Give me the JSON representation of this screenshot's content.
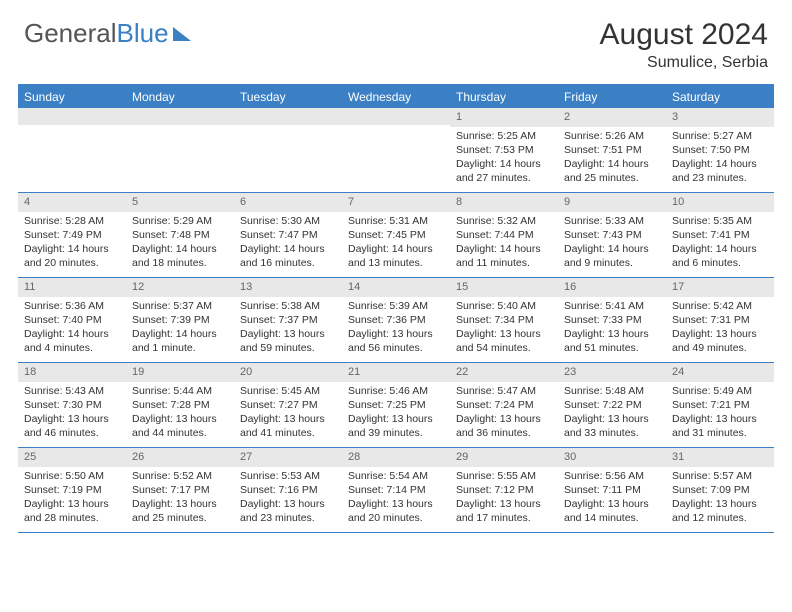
{
  "brand": {
    "part1": "General",
    "part2": "Blue"
  },
  "title": "August 2024",
  "location": "Sumulice, Serbia",
  "colors": {
    "accent": "#3b7fc4",
    "header_text": "#333333",
    "daynum_bg": "#e8e8e8"
  },
  "days_of_week": [
    "Sunday",
    "Monday",
    "Tuesday",
    "Wednesday",
    "Thursday",
    "Friday",
    "Saturday"
  ],
  "weeks": [
    [
      {
        "n": "",
        "sunrise": "",
        "sunset": "",
        "daylight": ""
      },
      {
        "n": "",
        "sunrise": "",
        "sunset": "",
        "daylight": ""
      },
      {
        "n": "",
        "sunrise": "",
        "sunset": "",
        "daylight": ""
      },
      {
        "n": "",
        "sunrise": "",
        "sunset": "",
        "daylight": ""
      },
      {
        "n": "1",
        "sunrise": "Sunrise: 5:25 AM",
        "sunset": "Sunset: 7:53 PM",
        "daylight": "Daylight: 14 hours and 27 minutes."
      },
      {
        "n": "2",
        "sunrise": "Sunrise: 5:26 AM",
        "sunset": "Sunset: 7:51 PM",
        "daylight": "Daylight: 14 hours and 25 minutes."
      },
      {
        "n": "3",
        "sunrise": "Sunrise: 5:27 AM",
        "sunset": "Sunset: 7:50 PM",
        "daylight": "Daylight: 14 hours and 23 minutes."
      }
    ],
    [
      {
        "n": "4",
        "sunrise": "Sunrise: 5:28 AM",
        "sunset": "Sunset: 7:49 PM",
        "daylight": "Daylight: 14 hours and 20 minutes."
      },
      {
        "n": "5",
        "sunrise": "Sunrise: 5:29 AM",
        "sunset": "Sunset: 7:48 PM",
        "daylight": "Daylight: 14 hours and 18 minutes."
      },
      {
        "n": "6",
        "sunrise": "Sunrise: 5:30 AM",
        "sunset": "Sunset: 7:47 PM",
        "daylight": "Daylight: 14 hours and 16 minutes."
      },
      {
        "n": "7",
        "sunrise": "Sunrise: 5:31 AM",
        "sunset": "Sunset: 7:45 PM",
        "daylight": "Daylight: 14 hours and 13 minutes."
      },
      {
        "n": "8",
        "sunrise": "Sunrise: 5:32 AM",
        "sunset": "Sunset: 7:44 PM",
        "daylight": "Daylight: 14 hours and 11 minutes."
      },
      {
        "n": "9",
        "sunrise": "Sunrise: 5:33 AM",
        "sunset": "Sunset: 7:43 PM",
        "daylight": "Daylight: 14 hours and 9 minutes."
      },
      {
        "n": "10",
        "sunrise": "Sunrise: 5:35 AM",
        "sunset": "Sunset: 7:41 PM",
        "daylight": "Daylight: 14 hours and 6 minutes."
      }
    ],
    [
      {
        "n": "11",
        "sunrise": "Sunrise: 5:36 AM",
        "sunset": "Sunset: 7:40 PM",
        "daylight": "Daylight: 14 hours and 4 minutes."
      },
      {
        "n": "12",
        "sunrise": "Sunrise: 5:37 AM",
        "sunset": "Sunset: 7:39 PM",
        "daylight": "Daylight: 14 hours and 1 minute."
      },
      {
        "n": "13",
        "sunrise": "Sunrise: 5:38 AM",
        "sunset": "Sunset: 7:37 PM",
        "daylight": "Daylight: 13 hours and 59 minutes."
      },
      {
        "n": "14",
        "sunrise": "Sunrise: 5:39 AM",
        "sunset": "Sunset: 7:36 PM",
        "daylight": "Daylight: 13 hours and 56 minutes."
      },
      {
        "n": "15",
        "sunrise": "Sunrise: 5:40 AM",
        "sunset": "Sunset: 7:34 PM",
        "daylight": "Daylight: 13 hours and 54 minutes."
      },
      {
        "n": "16",
        "sunrise": "Sunrise: 5:41 AM",
        "sunset": "Sunset: 7:33 PM",
        "daylight": "Daylight: 13 hours and 51 minutes."
      },
      {
        "n": "17",
        "sunrise": "Sunrise: 5:42 AM",
        "sunset": "Sunset: 7:31 PM",
        "daylight": "Daylight: 13 hours and 49 minutes."
      }
    ],
    [
      {
        "n": "18",
        "sunrise": "Sunrise: 5:43 AM",
        "sunset": "Sunset: 7:30 PM",
        "daylight": "Daylight: 13 hours and 46 minutes."
      },
      {
        "n": "19",
        "sunrise": "Sunrise: 5:44 AM",
        "sunset": "Sunset: 7:28 PM",
        "daylight": "Daylight: 13 hours and 44 minutes."
      },
      {
        "n": "20",
        "sunrise": "Sunrise: 5:45 AM",
        "sunset": "Sunset: 7:27 PM",
        "daylight": "Daylight: 13 hours and 41 minutes."
      },
      {
        "n": "21",
        "sunrise": "Sunrise: 5:46 AM",
        "sunset": "Sunset: 7:25 PM",
        "daylight": "Daylight: 13 hours and 39 minutes."
      },
      {
        "n": "22",
        "sunrise": "Sunrise: 5:47 AM",
        "sunset": "Sunset: 7:24 PM",
        "daylight": "Daylight: 13 hours and 36 minutes."
      },
      {
        "n": "23",
        "sunrise": "Sunrise: 5:48 AM",
        "sunset": "Sunset: 7:22 PM",
        "daylight": "Daylight: 13 hours and 33 minutes."
      },
      {
        "n": "24",
        "sunrise": "Sunrise: 5:49 AM",
        "sunset": "Sunset: 7:21 PM",
        "daylight": "Daylight: 13 hours and 31 minutes."
      }
    ],
    [
      {
        "n": "25",
        "sunrise": "Sunrise: 5:50 AM",
        "sunset": "Sunset: 7:19 PM",
        "daylight": "Daylight: 13 hours and 28 minutes."
      },
      {
        "n": "26",
        "sunrise": "Sunrise: 5:52 AM",
        "sunset": "Sunset: 7:17 PM",
        "daylight": "Daylight: 13 hours and 25 minutes."
      },
      {
        "n": "27",
        "sunrise": "Sunrise: 5:53 AM",
        "sunset": "Sunset: 7:16 PM",
        "daylight": "Daylight: 13 hours and 23 minutes."
      },
      {
        "n": "28",
        "sunrise": "Sunrise: 5:54 AM",
        "sunset": "Sunset: 7:14 PM",
        "daylight": "Daylight: 13 hours and 20 minutes."
      },
      {
        "n": "29",
        "sunrise": "Sunrise: 5:55 AM",
        "sunset": "Sunset: 7:12 PM",
        "daylight": "Daylight: 13 hours and 17 minutes."
      },
      {
        "n": "30",
        "sunrise": "Sunrise: 5:56 AM",
        "sunset": "Sunset: 7:11 PM",
        "daylight": "Daylight: 13 hours and 14 minutes."
      },
      {
        "n": "31",
        "sunrise": "Sunrise: 5:57 AM",
        "sunset": "Sunset: 7:09 PM",
        "daylight": "Daylight: 13 hours and 12 minutes."
      }
    ]
  ]
}
